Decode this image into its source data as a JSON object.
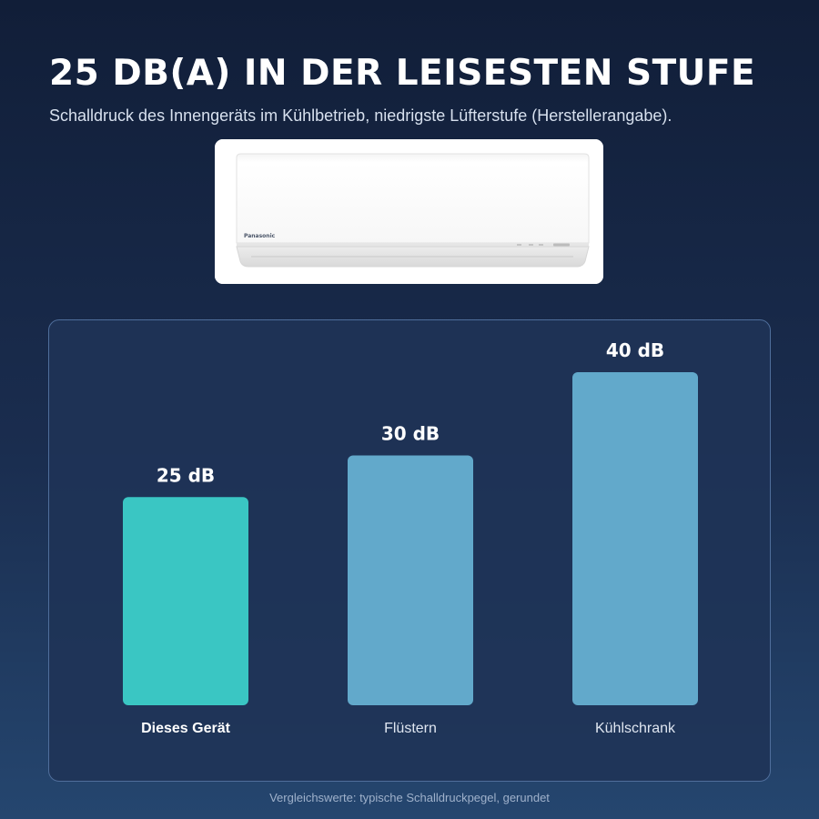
{
  "headline": "25 DB(A) IN DER LEISESTEN STUFE",
  "subline": "Schalldruck des Innengeräts im Kühlbetrieb, niedrigste Lüfterstufe (Herstellerangabe).",
  "product": {
    "brand_mark": "Panasonic"
  },
  "chart_data": {
    "type": "bar",
    "categories": [
      "Dieses Gerät",
      "Flüstern",
      "Kühlschrank"
    ],
    "values": [
      25,
      30,
      40
    ],
    "value_labels": [
      "25 dB",
      "30 dB",
      "40 dB"
    ],
    "highlight_index": 0,
    "colors": {
      "highlight": "#3ac6c3",
      "default": "#62a9cb"
    },
    "grid": false
  },
  "footnote": "Vergleichswerte: typische Schalldruckpegel, gerundet"
}
